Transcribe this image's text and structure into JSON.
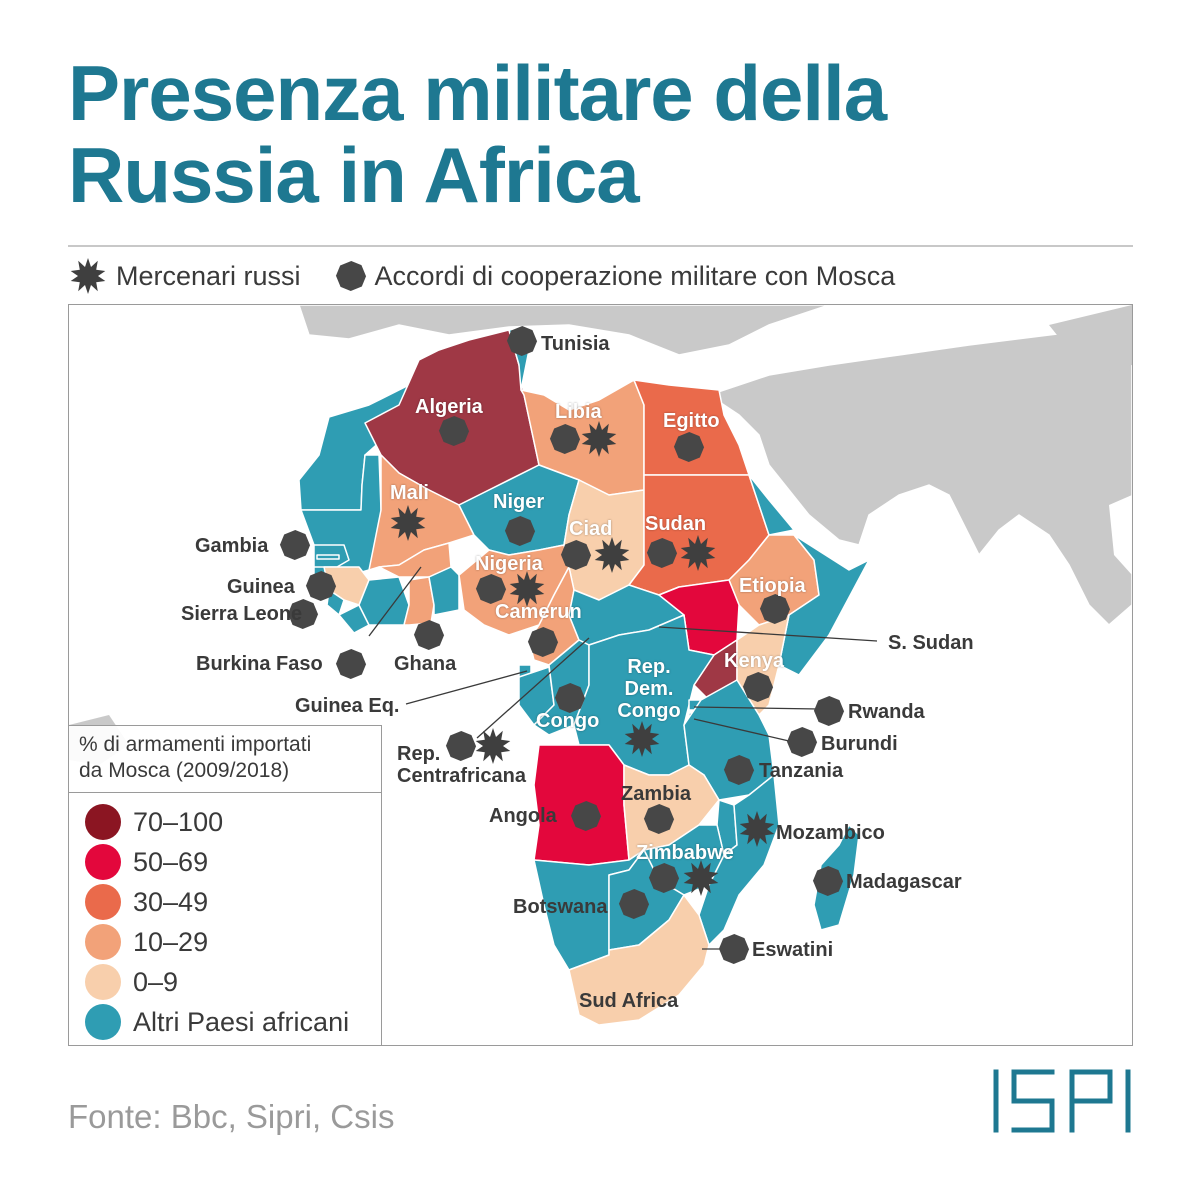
{
  "title": "Presenza militare della Russia in Africa",
  "legend_top": {
    "mercenaries_label": "Mercenari russi",
    "mercenaries_icon": "starburst-icon",
    "cooperation_label": "Accordi di cooperazione militare con Mosca",
    "cooperation_icon": "octagon-icon"
  },
  "legend_box": {
    "title_line1": "% di armamenti importati",
    "title_line2": "da Mosca (2009/2018)",
    "classes": [
      {
        "label": "70–100",
        "color": "#8b1522"
      },
      {
        "label": "50–69",
        "color": "#e3073c"
      },
      {
        "label": "30–49",
        "color": "#ea6a4b"
      },
      {
        "label": "10–29",
        "color": "#f2a279"
      },
      {
        "label": "0–9",
        "color": "#f8cfac"
      },
      {
        "label": "Altri Paesi africani",
        "color": "#2f9db3"
      }
    ]
  },
  "countries": {
    "algeria": {
      "name": "Algeria",
      "class": "70–100",
      "cooperation": true,
      "mercenaries": false
    },
    "tunisia": {
      "name": "Tunisia",
      "class": "Altri Paesi africani",
      "cooperation": true,
      "mercenaries": false
    },
    "libia": {
      "name": "Libia",
      "class": "10–29",
      "cooperation": true,
      "mercenaries": true
    },
    "egitto": {
      "name": "Egitto",
      "class": "30–49",
      "cooperation": true,
      "mercenaries": false
    },
    "mali": {
      "name": "Mali",
      "class": "10–29",
      "cooperation": false,
      "mercenaries": true
    },
    "niger": {
      "name": "Niger",
      "class": "Altri Paesi africani",
      "cooperation": true,
      "mercenaries": false
    },
    "ciad": {
      "name": "Ciad",
      "class": "0–9",
      "cooperation": true,
      "mercenaries": true
    },
    "sudan": {
      "name": "Sudan",
      "class": "30–49",
      "cooperation": true,
      "mercenaries": true
    },
    "gambia": {
      "name": "Gambia",
      "class": "Altri Paesi africani",
      "cooperation": true,
      "mercenaries": false
    },
    "nigeria": {
      "name": "Nigeria",
      "class": "10–29",
      "cooperation": true,
      "mercenaries": true
    },
    "guinea": {
      "name": "Guinea",
      "class": "0–9",
      "cooperation": true,
      "mercenaries": false
    },
    "sierra_leone": {
      "name": "Sierra Leone",
      "class": "Altri Paesi africani",
      "cooperation": true,
      "mercenaries": false
    },
    "etiopia": {
      "name": "Etiopia",
      "class": "10–29",
      "cooperation": true,
      "mercenaries": false
    },
    "camerun": {
      "name": "Camerun",
      "class": "10–29",
      "cooperation": true,
      "mercenaries": false
    },
    "s_sudan": {
      "name": "S. Sudan",
      "class": "50–69",
      "cooperation": false,
      "mercenaries": false
    },
    "burkina_faso": {
      "name": "Burkina Faso",
      "class": "10–29",
      "cooperation": true,
      "mercenaries": false
    },
    "ghana": {
      "name": "Ghana",
      "class": "10–29",
      "cooperation": true,
      "mercenaries": false
    },
    "kenya": {
      "name": "Kenya",
      "class": "0–9",
      "cooperation": true,
      "mercenaries": false
    },
    "rep_dem_congo": {
      "name": "Rep. Dem. Congo",
      "class": "Altri Paesi africani",
      "cooperation": false,
      "mercenaries": true
    },
    "guinea_eq": {
      "name": "Guinea Eq.",
      "class": "Altri Paesi africani",
      "cooperation": false,
      "mercenaries": false
    },
    "rwanda": {
      "name": "Rwanda",
      "class": "Altri Paesi africani",
      "cooperation": true,
      "mercenaries": false
    },
    "congo": {
      "name": "Congo",
      "class": "Altri Paesi africani",
      "cooperation": true,
      "mercenaries": false
    },
    "burundi": {
      "name": "Burundi",
      "class": "Altri Paesi africani",
      "cooperation": true,
      "mercenaries": false
    },
    "rep_centrafricana": {
      "name": "Rep. Centrafricana",
      "class": "Altri Paesi africani",
      "cooperation": true,
      "mercenaries": true
    },
    "tanzania": {
      "name": "Tanzania",
      "class": "Altri Paesi africani",
      "cooperation": true,
      "mercenaries": false
    },
    "zambia": {
      "name": "Zambia",
      "class": "0–9",
      "cooperation": true,
      "mercenaries": false
    },
    "angola": {
      "name": "Angola",
      "class": "50–69",
      "cooperation": true,
      "mercenaries": false
    },
    "mozambico": {
      "name": "Mozambico",
      "class": "Altri Paesi africani",
      "cooperation": false,
      "mercenaries": true
    },
    "zimbabwe": {
      "name": "Zimbabwe",
      "class": "Altri Paesi africani",
      "cooperation": true,
      "mercenaries": true
    },
    "madagascar": {
      "name": "Madagascar",
      "class": "Altri Paesi africani",
      "cooperation": true,
      "mercenaries": false
    },
    "botswana": {
      "name": "Botswana",
      "class": "Altri Paesi africani",
      "cooperation": true,
      "mercenaries": false
    },
    "eswatini": {
      "name": "Eswatini",
      "class": "Altri Paesi africani",
      "cooperation": true,
      "mercenaries": false
    },
    "sud_africa": {
      "name": "Sud Africa",
      "class": "0–9",
      "cooperation": false,
      "mercenaries": false
    }
  },
  "source": "Fonte: Bbc, Sipri, Csis",
  "logo": "ISPI",
  "colors": {
    "title": "#1e7891",
    "land_other": "#c9c9c9",
    "marker": "#4a4a4a"
  }
}
